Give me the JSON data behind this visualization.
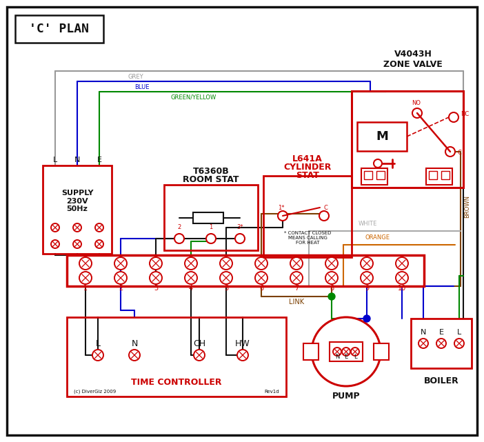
{
  "bg": "#ffffff",
  "RED": "#cc0000",
  "BLUE": "#0000cc",
  "GREEN": "#008800",
  "GREY": "#999999",
  "BROWN": "#7B3F00",
  "ORANGE": "#cc6600",
  "BLACK": "#111111",
  "WHITE_W": "#aaaaaa",
  "title": "'C' PLAN",
  "zone_valve_text": "V4043H\nZONE VALVE",
  "room_stat_line1": "T6360B",
  "room_stat_line2": "ROOM STAT",
  "cyl_stat_line1": "L641A",
  "cyl_stat_line2": "CYLINDER",
  "cyl_stat_line3": "STAT",
  "tc_text": "TIME CONTROLLER",
  "pump_text": "PUMP",
  "boiler_text": "BOILER",
  "supply_text": "SUPPLY\n230V\n50Hz",
  "link_text": "LINK",
  "contact_note": "* CONTACT CLOSED\nMEANS CALLING\nFOR HEAT",
  "copyright": "(c) DiverGiz 2009",
  "revision": "Rev1d",
  "grey_label": "GREY",
  "blue_label": "BLUE",
  "gy_label": "GREEN/YELLOW",
  "brown_label": "BROWN",
  "white_label": "WHITE",
  "orange_label": "ORANGE"
}
